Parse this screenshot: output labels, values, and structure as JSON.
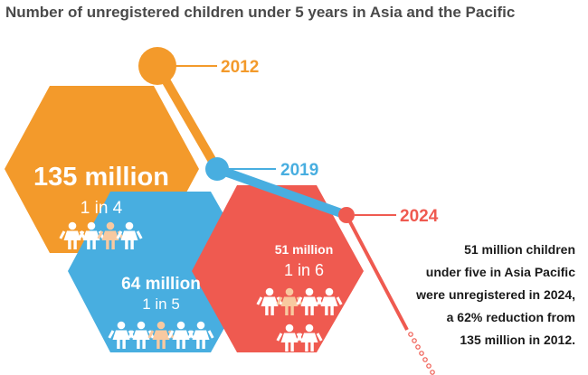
{
  "title": "Number of unregistered children under 5 years in Asia and the Pacific",
  "milestones": [
    {
      "year": "2012",
      "value_label": "135 million",
      "ratio_label": "1 in 4",
      "color": "#f39a2b"
    },
    {
      "year": "2019",
      "value_label": "64 million",
      "ratio_label": "1 in 5",
      "color": "#48aee0"
    },
    {
      "year": "2024",
      "value_label": "51 million",
      "ratio_label": "1 in 6",
      "color": "#ef5a50"
    }
  ],
  "summary_lines": [
    "51 million children",
    "under five in Asia Pacific",
    "were unregistered in 2024,",
    "a 62% reduction from",
    "135 million in 2012."
  ],
  "icons": {
    "child_figure": "child-figure-icon",
    "highlight_color": "#f8c9a0"
  }
}
